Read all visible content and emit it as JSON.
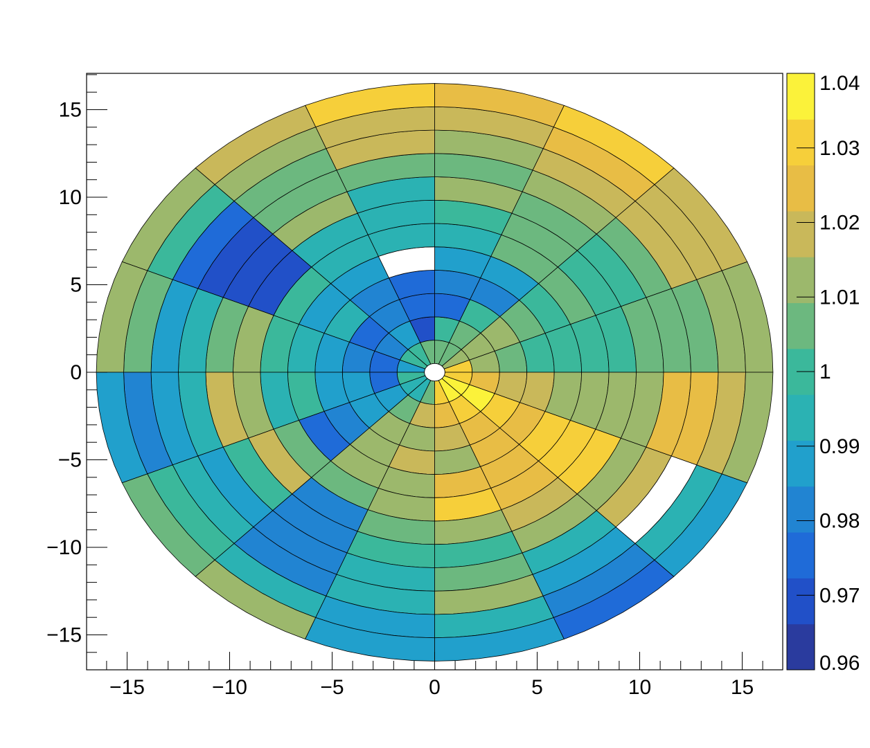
{
  "chart_data": {
    "type": "heatmap",
    "subtype": "polar",
    "title": "",
    "xlabel": "",
    "ylabel": "",
    "xlim": [
      -16.5,
      16.5
    ],
    "ylim": [
      -17,
      17
    ],
    "r_inner": 0.5,
    "r_outer": 16.5,
    "n_sectors": 16,
    "n_rings": 12,
    "x_tick_labels": [
      "−15",
      "−10",
      "−5",
      "0",
      "5",
      "10",
      "15"
    ],
    "y_tick_labels": [
      "15",
      "10",
      "5",
      "0",
      "−5",
      "−10",
      "−15"
    ],
    "x_tick_values": [
      -15,
      -10,
      -5,
      0,
      5,
      10,
      15
    ],
    "y_tick_values": [
      15,
      10,
      5,
      0,
      -5,
      -10,
      -15
    ],
    "colorbar": {
      "min": 0.96,
      "max": 1.04,
      "tick_values": [
        0.96,
        0.97,
        0.98,
        0.99,
        1.0,
        1.01,
        1.02,
        1.03,
        1.04
      ],
      "tick_labels": [
        "0.96",
        "0.97",
        "0.98",
        "0.99",
        "1",
        "1.01",
        "1.02",
        "1.03",
        "1.04"
      ],
      "palette": [
        "#2a3b9e",
        "#2150c8",
        "#1f6bd8",
        "#2184d2",
        "#21a0cc",
        "#2bb2b3",
        "#3bb89b",
        "#6cb87f",
        "#9cb86c",
        "#c9b85a",
        "#e8bd45",
        "#f6cf3a",
        "#fbf23a"
      ]
    },
    "values": [
      [
        1.032,
        1.01,
        1.007,
        0.998,
        0.999,
        1.001,
        1.002,
        1.006,
        1.004,
        1.006,
        1.012,
        1.014
      ],
      [
        1.015,
        1.012,
        1.01,
        1.004,
        1.003,
        1.004,
        1.001,
        1.002,
        1.008,
        1.016,
        1.018,
        1.02
      ],
      [
        1.008,
        1.004,
        1.002,
        0.982,
        0.99,
        1.004,
        1.005,
        1.008,
        1.012,
        1.02,
        1.024,
        1.028
      ],
      [
        1.005,
        1.002,
        0.978,
        0.984,
        0.988,
        0.996,
        1.002,
        1.01,
        1.006,
        1.014,
        1.02,
        1.026
      ],
      [
        1.004,
        0.968,
        0.974,
        0.978,
        0.99,
        0.992,
        0.994,
        0.996,
        1.008,
        1.016,
        1.02,
        1.028
      ],
      [
        1.002,
        0.988,
        0.982,
        0.984,
        0.99,
        0.992,
        0.996,
        1.012,
        1.004,
        1.008,
        1.014,
        1.016
      ],
      [
        1.0,
        0.984,
        0.976,
        0.994,
        0.988,
        1.002,
        0.972,
        0.972,
        0.972,
        0.974,
        1.0,
        1.012
      ],
      [
        0.99,
        0.978,
        0.98,
        0.986,
        0.996,
        1.002,
        1.012,
        1.004,
        0.992,
        0.988,
        1.004,
        1.01
      ],
      [
        1.002,
        0.978,
        0.99,
        0.986,
        1.0,
        0.996,
        1.014,
        1.016,
        0.996,
        0.99,
        0.98,
        0.988
      ],
      [
        0.992,
        0.99,
        0.986,
        0.98,
        0.974,
        1.004,
        1.02,
        0.998,
        0.99,
        0.996,
        0.998,
        1.006
      ],
      [
        0.996,
        1.004,
        1.012,
        1.01,
        1.014,
        1.006,
        0.984,
        0.982,
        0.98,
        0.984,
        0.994,
        1.012
      ],
      [
        1.008,
        1.016,
        1.014,
        1.018,
        1.014,
        1.012,
        1.006,
        1.002,
        0.994,
        0.992,
        0.988,
        0.986
      ],
      [
        1.03,
        1.022,
        1.018,
        1.01,
        1.024,
        1.03,
        1.01,
        1.002,
        1.004,
        1.01,
        0.996,
        0.99
      ],
      [
        1.036,
        1.028,
        1.024,
        1.022,
        1.026,
        1.024,
        1.018,
        1.012,
        0.994,
        0.988,
        0.98,
        0.976
      ],
      [
        1.04,
        1.034,
        1.028,
        1.022,
        1.03,
        1.028,
        1.03,
        1.01,
        1.018,
        1.006,
        0.994,
        0.986
      ],
      [
        1.03,
        1.026,
        1.02,
        1.016,
        1.012,
        1.014,
        1.012,
        1.01,
        1.022,
        1.024,
        1.018,
        1.012
      ]
    ],
    "empty_bins": [
      [
        4,
        4
      ],
      [
        14,
        9
      ]
    ]
  }
}
